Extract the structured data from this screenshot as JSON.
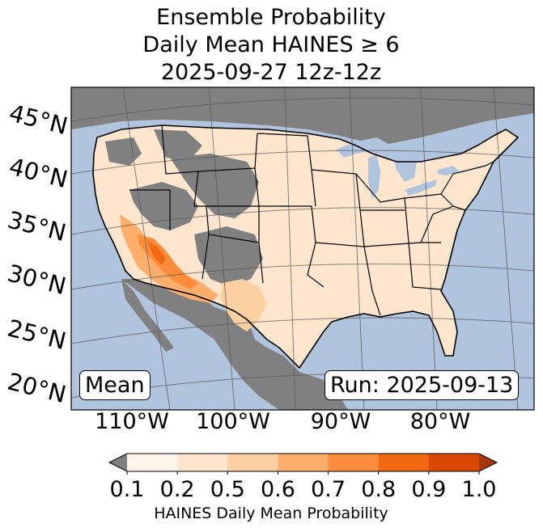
{
  "title": {
    "line1": "Ensemble Probability",
    "line2": "Daily Mean HAINES ≥ 6",
    "line3": "2025-09-27 12z-12z"
  },
  "map": {
    "lat_labels": [
      "45°N",
      "40°N",
      "35°N",
      "30°N",
      "25°N",
      "20°N"
    ],
    "lon_labels": [
      "110°W",
      "100°W",
      "90°W",
      "80°W"
    ],
    "stat_label": "Mean",
    "run_label": "Run: 2025-09-13",
    "colors": {
      "ocean": "#b0c4de",
      "no_data": "#808080",
      "border": "#000000",
      "gridline": "#555555"
    }
  },
  "colorbar": {
    "label": "HAINES Daily Mean Probability",
    "ticks": [
      "0.1",
      "0.2",
      "0.5",
      "0.6",
      "0.7",
      "0.8",
      "0.9",
      "1.0"
    ],
    "under_color": "#808080",
    "colors": [
      "#fff5eb",
      "#fee6ce",
      "#fdd0a2",
      "#fdae6b",
      "#fd8d3c",
      "#f16913",
      "#d94801",
      "#a63603"
    ]
  }
}
